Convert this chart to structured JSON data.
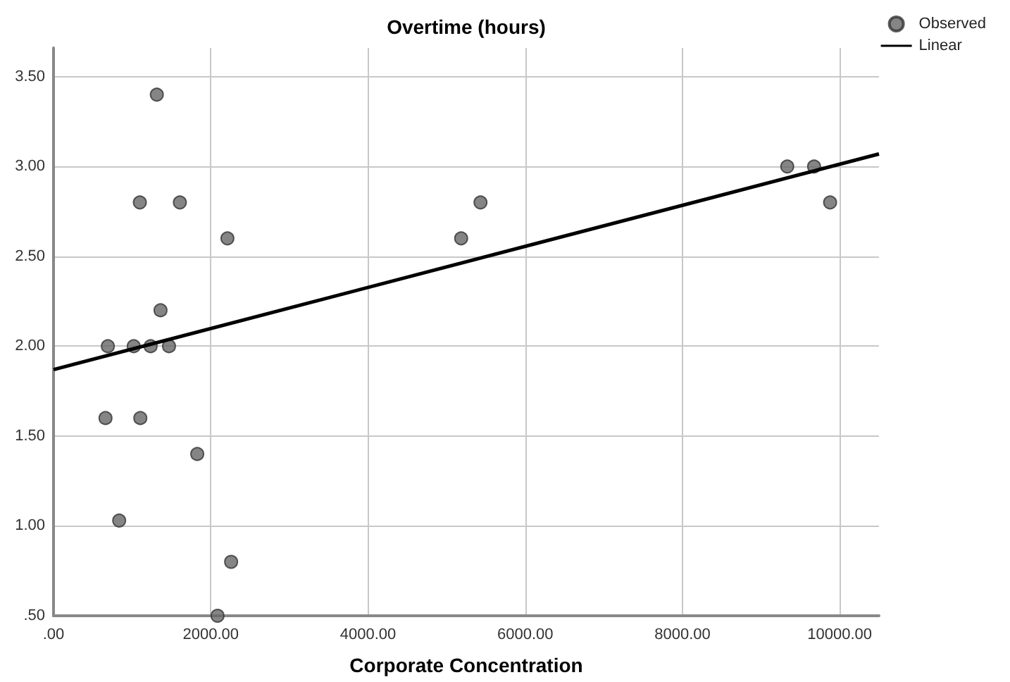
{
  "chart_data": {
    "type": "scatter",
    "ylabel": "Overtime (hours)",
    "xlabel": "Corporate Concentration",
    "xlim": [
      0,
      10500
    ],
    "ylim": [
      0.5,
      3.66
    ],
    "xticks": [
      {
        "value": 0,
        "label": ".00"
      },
      {
        "value": 2000,
        "label": "2000.00"
      },
      {
        "value": 4000,
        "label": "4000.00"
      },
      {
        "value": 6000,
        "label": "6000.00"
      },
      {
        "value": 8000,
        "label": "8000.00"
      },
      {
        "value": 10000,
        "label": "10000.00"
      }
    ],
    "yticks": [
      {
        "value": 0.5,
        "label": ".50"
      },
      {
        "value": 1,
        "label": "1.00"
      },
      {
        "value": 1.5,
        "label": "1.50"
      },
      {
        "value": 2,
        "label": "2.00"
      },
      {
        "value": 2.5,
        "label": "2.50"
      },
      {
        "value": 3,
        "label": "3.00"
      },
      {
        "value": 3.5,
        "label": "3.50"
      }
    ],
    "grid": true,
    "legend": "top right",
    "marker": "circle",
    "series": [
      {
        "name": "Observed",
        "type": "scatter",
        "color": "#666666",
        "x": [
          1314,
          1098,
          1607,
          2212,
          1361,
          691,
          1020,
          1235,
          1469,
          661,
          1104,
          1828,
          835,
          2259,
          2086,
          5185,
          5431,
          9333,
          9674,
          9878
        ],
        "values": [
          3.4,
          2.8,
          2.8,
          2.6,
          2.2,
          2.0,
          2.0,
          2.0,
          2.0,
          1.6,
          1.6,
          1.4,
          1.03,
          0.8,
          0.5,
          2.6,
          2.8,
          3.0,
          3.0,
          2.8
        ]
      },
      {
        "name": "Linear",
        "type": "line",
        "color": "#000000",
        "marker": "none",
        "line_style": "solid",
        "x": [
          0,
          10500
        ],
        "values": [
          1.87,
          3.07
        ]
      }
    ]
  }
}
